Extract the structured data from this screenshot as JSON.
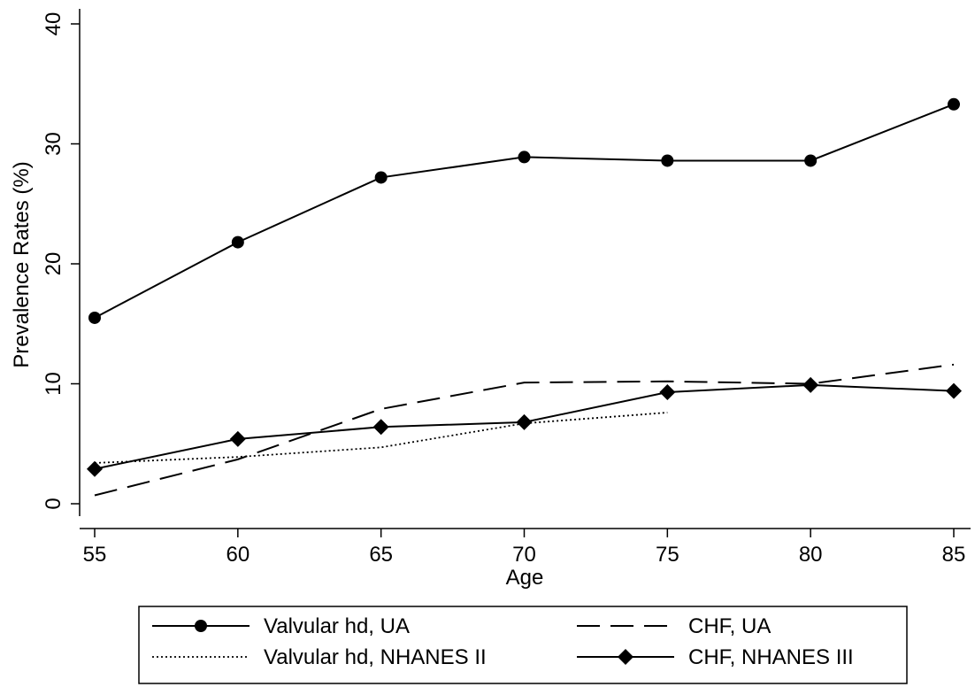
{
  "chart_data": {
    "type": "line",
    "xlabel": "Age",
    "ylabel": "Prevalence Rates (%)",
    "xlim": [
      55,
      85
    ],
    "ylim": [
      0,
      40
    ],
    "xticks": [
      55,
      60,
      65,
      70,
      75,
      80,
      85
    ],
    "yticks": [
      0,
      10,
      20,
      30,
      40
    ],
    "grid": false,
    "legend_position": "bottom",
    "series": [
      {
        "name": "Valvular hd, UA",
        "style": "solid",
        "marker": "circle",
        "x": [
          55,
          60,
          65,
          70,
          75,
          80,
          85
        ],
        "y": [
          15.5,
          21.8,
          27.2,
          28.9,
          28.6,
          28.6,
          33.3
        ]
      },
      {
        "name": "CHF, UA",
        "style": "dashed",
        "marker": "none",
        "x": [
          55,
          60,
          65,
          70,
          75,
          80,
          85
        ],
        "y": [
          0.7,
          3.7,
          7.9,
          10.1,
          10.2,
          10.0,
          11.6
        ]
      },
      {
        "name": "Valvular hd, NHANES II",
        "style": "dotted",
        "marker": "none",
        "x": [
          55,
          60,
          65,
          70,
          75
        ],
        "y": [
          3.4,
          3.9,
          4.7,
          6.7,
          7.6
        ]
      },
      {
        "name": "CHF, NHANES III",
        "style": "solid",
        "marker": "diamond",
        "x": [
          55,
          60,
          65,
          70,
          75,
          80,
          85
        ],
        "y": [
          2.9,
          5.4,
          6.4,
          6.8,
          9.3,
          9.9,
          9.4
        ]
      }
    ],
    "colors": {
      "line": "#000000",
      "background": "#ffffff"
    }
  }
}
